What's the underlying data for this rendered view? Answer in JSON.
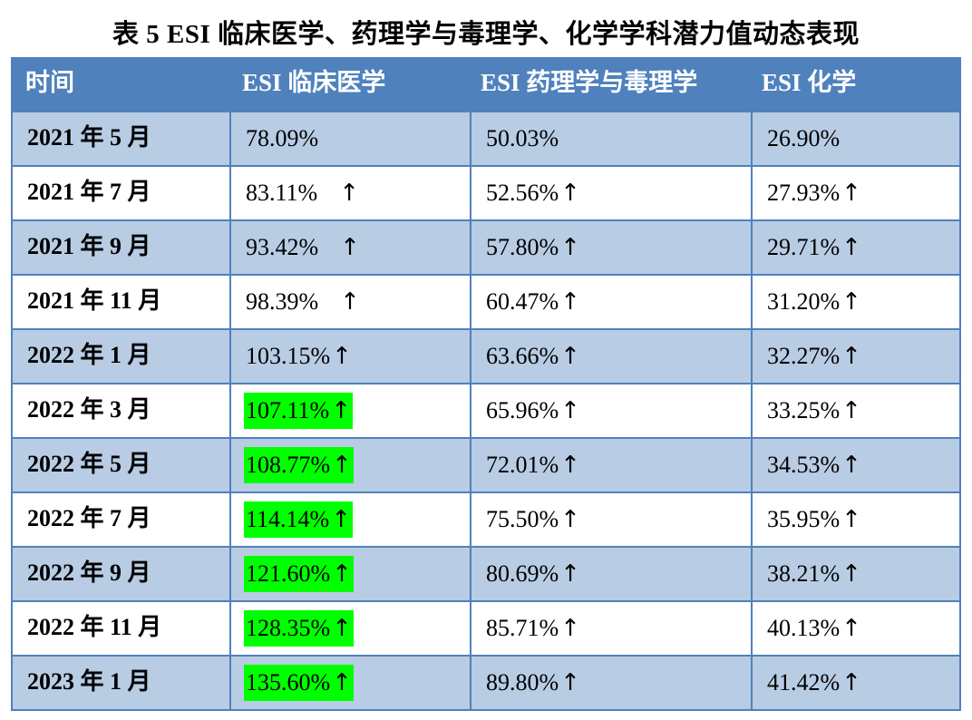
{
  "title": "表 5 ESI 临床医学、药理学与毒理学、化学学科潜力值动态表现",
  "headers": [
    "时间",
    "ESI 临床医学",
    "ESI 药理学与毒理学",
    "ESI 化学"
  ],
  "arrow_glyph": "↑",
  "highlight_color": "#00ff00",
  "header_color": "#4f81bd",
  "stripe_color": "#b8cce4",
  "rows": [
    {
      "date": "2021 年 5 月",
      "clinical": "78.09%",
      "pharm": "50.03%",
      "chem": "26.90%",
      "clinical_up": false,
      "pharm_up": false,
      "chem_up": false,
      "clinical_highlight": false
    },
    {
      "date": "2021 年 7 月",
      "clinical": "83.11%",
      "pharm": "52.56%",
      "chem": "27.93%",
      "clinical_up": true,
      "pharm_up": true,
      "chem_up": true,
      "clinical_highlight": false
    },
    {
      "date": "2021 年 9 月",
      "clinical": "93.42%",
      "pharm": "57.80%",
      "chem": "29.71%",
      "clinical_up": true,
      "pharm_up": true,
      "chem_up": true,
      "clinical_highlight": false
    },
    {
      "date": "2021 年 11 月",
      "clinical": "98.39%",
      "pharm": "60.47%",
      "chem": "31.20%",
      "clinical_up": true,
      "pharm_up": true,
      "chem_up": true,
      "clinical_highlight": false
    },
    {
      "date": "2022 年 1 月",
      "clinical": "103.15%",
      "pharm": "63.66%",
      "chem": "32.27%",
      "clinical_up": true,
      "pharm_up": true,
      "chem_up": true,
      "clinical_highlight": false
    },
    {
      "date": "2022 年 3 月",
      "clinical": "107.11%",
      "pharm": "65.96%",
      "chem": "33.25%",
      "clinical_up": true,
      "pharm_up": true,
      "chem_up": true,
      "clinical_highlight": true
    },
    {
      "date": "2022 年 5 月",
      "clinical": "108.77%",
      "pharm": "72.01%",
      "chem": "34.53%",
      "clinical_up": true,
      "pharm_up": true,
      "chem_up": true,
      "clinical_highlight": true
    },
    {
      "date": "2022 年 7 月",
      "clinical": "114.14%",
      "pharm": "75.50%",
      "chem": "35.95%",
      "clinical_up": true,
      "pharm_up": true,
      "chem_up": true,
      "clinical_highlight": true
    },
    {
      "date": "2022 年 9 月",
      "clinical": "121.60%",
      "pharm": "80.69%",
      "chem": "38.21%",
      "clinical_up": true,
      "pharm_up": true,
      "chem_up": true,
      "clinical_highlight": true
    },
    {
      "date": "2022 年 11 月",
      "clinical": "128.35%",
      "pharm": "85.71%",
      "chem": "40.13%",
      "clinical_up": true,
      "pharm_up": true,
      "chem_up": true,
      "clinical_highlight": true
    },
    {
      "date": "2023 年 1 月",
      "clinical": "135.60%",
      "pharm": "89.80%",
      "chem": "41.42%",
      "clinical_up": true,
      "pharm_up": true,
      "chem_up": true,
      "clinical_highlight": true
    }
  ]
}
